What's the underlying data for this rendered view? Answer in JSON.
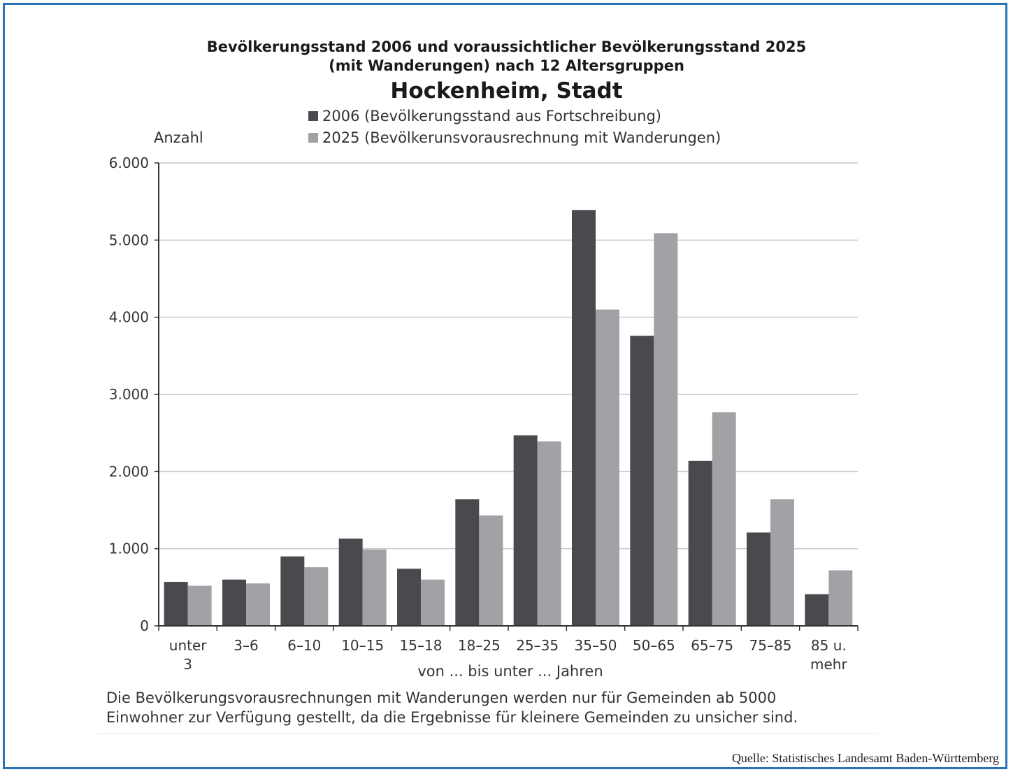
{
  "chart_data": {
    "type": "bar",
    "title": "Bevölkerungsstand 2006 und voraussichtlicher Bevölkerungsstand 2025",
    "title_line2": "(mit Wanderungen) nach 12 Altersgruppen",
    "subtitle": "Hockenheim, Stadt",
    "ylabel": "Anzahl",
    "xlabel": "von ... bis unter ... Jahren",
    "ylim": [
      0,
      6000
    ],
    "yticks": [
      "0",
      "1.000",
      "2.000",
      "3.000",
      "4.000",
      "5.000",
      "6.000"
    ],
    "grid": true,
    "legend_position": "top",
    "categories": [
      [
        "unter",
        "3"
      ],
      [
        "3–6"
      ],
      [
        "6–10"
      ],
      [
        "10–15"
      ],
      [
        "15–18"
      ],
      [
        "18–25"
      ],
      [
        "25–35"
      ],
      [
        "35–50"
      ],
      [
        "50–65"
      ],
      [
        "65–75"
      ],
      [
        "75–85"
      ],
      [
        "85 u.",
        "mehr"
      ]
    ],
    "series": [
      {
        "name": "2006 (Bevölkerungsstand aus Fortschreibung)",
        "color": "#4a4a4e",
        "values": [
          570,
          600,
          900,
          1130,
          740,
          1640,
          2470,
          5390,
          3760,
          2140,
          1210,
          410
        ]
      },
      {
        "name": "2025 (Bevölkerunsvorausrechnung mit Wanderungen)",
        "color": "#a2a2a6",
        "values": [
          520,
          550,
          760,
          990,
          600,
          1430,
          2390,
          4100,
          5090,
          2770,
          1640,
          720
        ]
      }
    ]
  },
  "note": {
    "line1": "Die Bevölkerungsvorausrechnungen mit Wanderungen werden nur für Gemeinden ab 5000",
    "line2": "Einwohner zur Verfügung gestellt, da die Ergebnisse für kleinere Gemeinden zu unsicher sind."
  },
  "source": "Quelle: Statistisches Landesamt Baden-Württemberg"
}
